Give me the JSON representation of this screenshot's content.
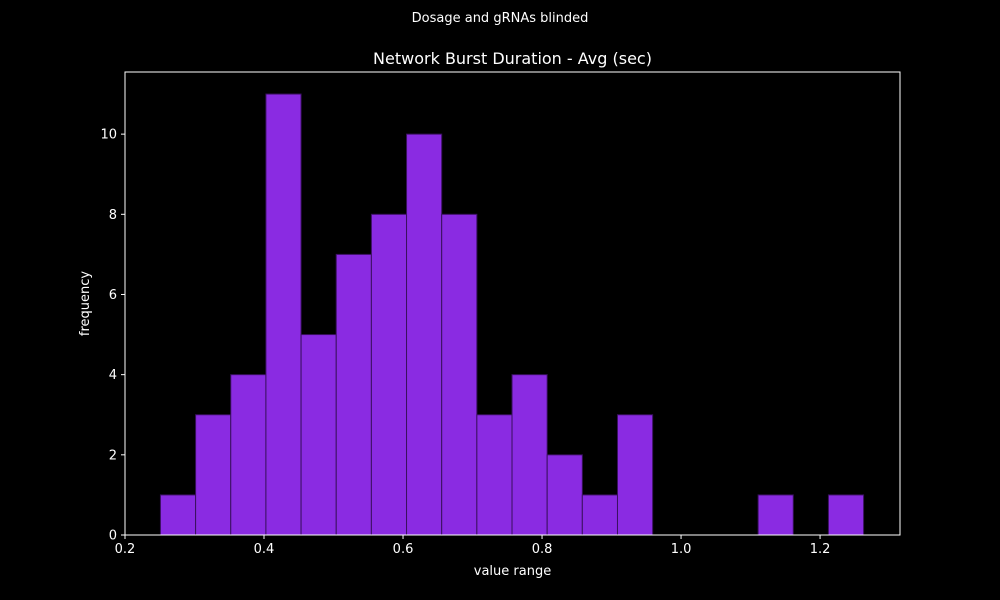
{
  "figure": {
    "suptitle": "Dosage and gRNAs blinded"
  },
  "chart_data": {
    "type": "bar",
    "subtype": "histogram",
    "title": "Network Burst Duration - Avg (sec)",
    "xlabel": "value range",
    "ylabel": "frequency",
    "xlim": [
      0.2,
      1.315
    ],
    "ylim": [
      0,
      11.55
    ],
    "xticks": [
      0.2,
      0.4,
      0.6,
      0.8,
      1.0,
      1.2
    ],
    "xtick_labels": [
      "0.2",
      "0.4",
      "0.6",
      "0.8",
      "1.0",
      "1.2"
    ],
    "yticks": [
      0,
      2,
      4,
      6,
      8,
      10
    ],
    "ytick_labels": [
      "0",
      "2",
      "4",
      "6",
      "8",
      "10"
    ],
    "bin_edges": [
      0.251,
      0.30158,
      0.35216,
      0.40274,
      0.45332,
      0.5039,
      0.55448,
      0.60506,
      0.65564,
      0.70622,
      0.7568,
      0.80738,
      0.85796,
      0.90854,
      0.95912,
      1.0097,
      1.06028,
      1.11086,
      1.16144,
      1.21202,
      1.2626
    ],
    "values": [
      1,
      3,
      4,
      11,
      5,
      7,
      8,
      10,
      8,
      3,
      4,
      2,
      1,
      3,
      0,
      0,
      0,
      1,
      0,
      1
    ],
    "bar_color": "#8a2be2",
    "edge_color": "#3a1060",
    "background": "#000000",
    "axes_color": "#ffffff",
    "grid": false
  }
}
